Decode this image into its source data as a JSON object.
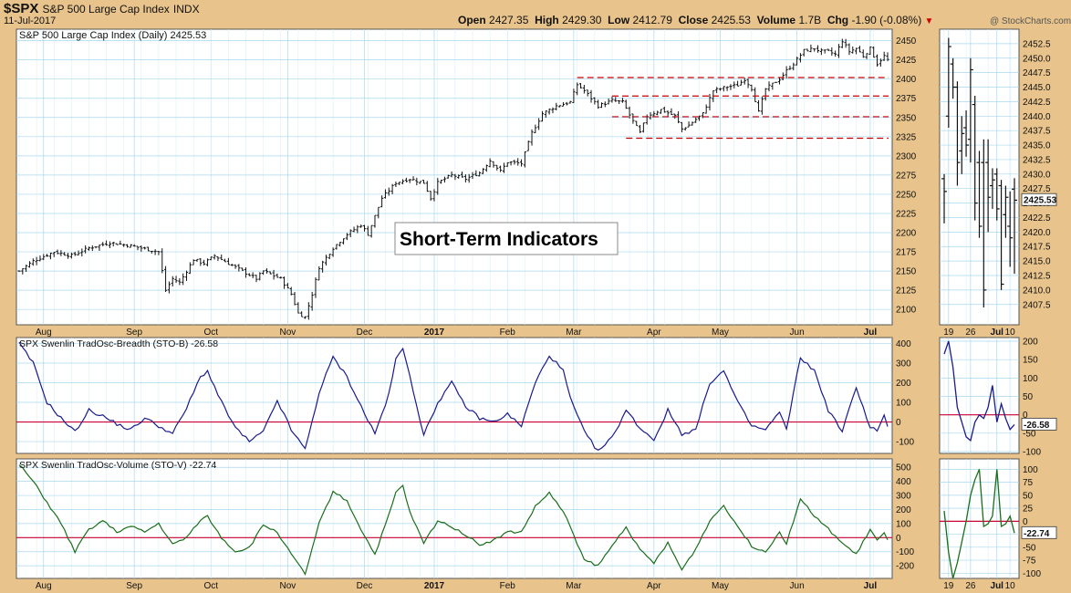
{
  "header": {
    "symbol": "$SPX",
    "name": "S&P 500 Large Cap Index",
    "exchange": "INDX",
    "date": "11-Jul-2017",
    "watermark": "@ StockCharts.com",
    "quote": {
      "open_label": "Open",
      "open": "2427.35",
      "high_label": "High",
      "high": "2429.30",
      "low_label": "Low",
      "low": "2412.79",
      "close_label": "Close",
      "close": "2425.53",
      "volume_label": "Volume",
      "volume": "1.7B",
      "chg_label": "Chg",
      "chg": "-1.90 (-0.08%)"
    },
    "colors": {
      "background": "#e8c48c",
      "grid": "#a8d8ee",
      "price": "#111111",
      "breadth": "#1a1a8c",
      "volume": "#1a6e1a",
      "zero_line": "#cc0033",
      "resistance": "#cc0000",
      "down_arrow": "#cc0000"
    }
  },
  "annotation": "Short-Term Indicators",
  "chart_data": [
    {
      "id": "price",
      "type": "ohlc",
      "title": "S&P 500 Large Cap Index (Daily) 2425.53",
      "last_value": "2425.53",
      "ylim": [
        2080,
        2465
      ],
      "y_ticks": [
        2100,
        2125,
        2150,
        2175,
        2200,
        2225,
        2250,
        2275,
        2300,
        2325,
        2350,
        2375,
        2400,
        2425,
        2450
      ],
      "x_ticks": [
        {
          "label": "Aug",
          "i": 7
        },
        {
          "label": "Sep",
          "i": 33
        },
        {
          "label": "Oct",
          "i": 55
        },
        {
          "label": "Nov",
          "i": 77
        },
        {
          "label": "Dec",
          "i": 99
        },
        {
          "label": "2017",
          "i": 119
        },
        {
          "label": "Feb",
          "i": 140
        },
        {
          "label": "Mar",
          "i": 159
        },
        {
          "label": "Apr",
          "i": 182
        },
        {
          "label": "May",
          "i": 201
        },
        {
          "label": "Jun",
          "i": 223
        },
        {
          "label": "Jul",
          "i": 244
        }
      ],
      "n_bars": 250,
      "close_anchors": [
        [
          0,
          2150
        ],
        [
          4,
          2163
        ],
        [
          10,
          2175
        ],
        [
          15,
          2170
        ],
        [
          20,
          2180
        ],
        [
          26,
          2187
        ],
        [
          32,
          2183
        ],
        [
          35,
          2180
        ],
        [
          40,
          2175
        ],
        [
          42,
          2125
        ],
        [
          44,
          2140
        ],
        [
          46,
          2135
        ],
        [
          50,
          2165
        ],
        [
          53,
          2160
        ],
        [
          56,
          2170
        ],
        [
          60,
          2160
        ],
        [
          64,
          2150
        ],
        [
          68,
          2140
        ],
        [
          70,
          2150
        ],
        [
          75,
          2140
        ],
        [
          78,
          2120
        ],
        [
          80,
          2095
        ],
        [
          82,
          2090
        ],
        [
          84,
          2120
        ],
        [
          86,
          2155
        ],
        [
          90,
          2180
        ],
        [
          94,
          2198
        ],
        [
          98,
          2210
        ],
        [
          100,
          2198
        ],
        [
          104,
          2245
        ],
        [
          108,
          2265
        ],
        [
          112,
          2270
        ],
        [
          116,
          2265
        ],
        [
          118,
          2245
        ],
        [
          120,
          2265
        ],
        [
          124,
          2275
        ],
        [
          128,
          2270
        ],
        [
          132,
          2278
        ],
        [
          135,
          2294
        ],
        [
          138,
          2280
        ],
        [
          140,
          2292
        ],
        [
          144,
          2290
        ],
        [
          147,
          2330
        ],
        [
          150,
          2355
        ],
        [
          154,
          2365
        ],
        [
          158,
          2370
        ],
        [
          160,
          2393
        ],
        [
          162,
          2385
        ],
        [
          166,
          2365
        ],
        [
          170,
          2372
        ],
        [
          173,
          2370
        ],
        [
          176,
          2345
        ],
        [
          178,
          2330
        ],
        [
          180,
          2352
        ],
        [
          184,
          2360
        ],
        [
          188,
          2352
        ],
        [
          190,
          2335
        ],
        [
          192,
          2340
        ],
        [
          196,
          2355
        ],
        [
          199,
          2385
        ],
        [
          203,
          2390
        ],
        [
          206,
          2392
        ],
        [
          208,
          2400
        ],
        [
          210,
          2388
        ],
        [
          212,
          2357
        ],
        [
          214,
          2387
        ],
        [
          218,
          2400
        ],
        [
          220,
          2411
        ],
        [
          222,
          2420
        ],
        [
          225,
          2437
        ],
        [
          228,
          2440
        ],
        [
          230,
          2436
        ],
        [
          232,
          2436
        ],
        [
          234,
          2432
        ],
        [
          236,
          2450
        ],
        [
          238,
          2436
        ],
        [
          240,
          2440
        ],
        [
          242,
          2430
        ],
        [
          244,
          2440
        ],
        [
          246,
          2420
        ],
        [
          248,
          2430
        ],
        [
          249,
          2425
        ]
      ],
      "resistance_levels": [
        2402,
        2378,
        2351,
        2323
      ],
      "resistance_start_i": 160
    },
    {
      "id": "price_zoom",
      "type": "ohlc",
      "ylim": [
        2404,
        2455
      ],
      "y_ticks": [
        2407.5,
        2410.0,
        2412.5,
        2415.0,
        2417.5,
        2420.0,
        2422.5,
        2425.0,
        2427.5,
        2430.0,
        2432.5,
        2435.0,
        2437.5,
        2440.0,
        2442.5,
        2445.0,
        2447.5,
        2450.0,
        2452.5
      ],
      "last_value": "2425.53",
      "x_ticks": [
        {
          "label": "19",
          "i": 1
        },
        {
          "label": "26",
          "i": 6
        },
        {
          "label": "Jul",
          "i": 12
        },
        {
          "label": "10",
          "i": 15
        }
      ],
      "bars": [
        [
          2429.2,
          2430,
          2421.5,
          2427
        ],
        [
          2440,
          2453.5,
          2438,
          2452
        ],
        [
          2449,
          2450,
          2443,
          2445
        ],
        [
          2445,
          2446,
          2428,
          2432
        ],
        [
          2434,
          2440,
          2430,
          2437
        ],
        [
          2438,
          2441,
          2433,
          2435
        ],
        [
          2436,
          2450,
          2432,
          2448
        ],
        [
          2442,
          2443.5,
          2422,
          2425
        ],
        [
          2432,
          2434,
          2419,
          2421
        ],
        [
          2432,
          2436,
          2407,
          2410
        ],
        [
          2432,
          2436,
          2420,
          2426
        ],
        [
          2428,
          2431,
          2424,
          2429
        ],
        [
          2430,
          2431,
          2422,
          2424
        ],
        [
          2428,
          2429,
          2410,
          2411
        ],
        [
          2423,
          2428,
          2419,
          2426
        ],
        [
          2421,
          2427,
          2414,
          2419
        ],
        [
          2427.4,
          2429.3,
          2412.8,
          2425.5
        ]
      ]
    },
    {
      "id": "breadth",
      "type": "line",
      "title": "SPX Swenlin TradOsc-Breadth (STO-B) -26.58",
      "last_value": "-26.58",
      "ylim": [
        -160,
        430
      ],
      "y_ticks": [
        -100,
        0,
        100,
        200,
        300,
        400
      ],
      "anchors": [
        [
          0,
          400
        ],
        [
          4,
          300
        ],
        [
          8,
          100
        ],
        [
          12,
          20
        ],
        [
          16,
          -50
        ],
        [
          20,
          60
        ],
        [
          24,
          30
        ],
        [
          28,
          -10
        ],
        [
          32,
          -40
        ],
        [
          36,
          20
        ],
        [
          40,
          -20
        ],
        [
          44,
          -60
        ],
        [
          48,
          70
        ],
        [
          52,
          230
        ],
        [
          54,
          260
        ],
        [
          58,
          100
        ],
        [
          62,
          -30
        ],
        [
          66,
          -100
        ],
        [
          70,
          -50
        ],
        [
          74,
          110
        ],
        [
          78,
          -40
        ],
        [
          82,
          -140
        ],
        [
          86,
          150
        ],
        [
          90,
          330
        ],
        [
          94,
          230
        ],
        [
          98,
          80
        ],
        [
          102,
          -60
        ],
        [
          106,
          140
        ],
        [
          108,
          320
        ],
        [
          110,
          370
        ],
        [
          112,
          240
        ],
        [
          116,
          -70
        ],
        [
          120,
          100
        ],
        [
          124,
          200
        ],
        [
          128,
          80
        ],
        [
          132,
          20
        ],
        [
          136,
          0
        ],
        [
          140,
          40
        ],
        [
          144,
          -20
        ],
        [
          148,
          200
        ],
        [
          152,
          340
        ],
        [
          156,
          260
        ],
        [
          158,
          120
        ],
        [
          162,
          -50
        ],
        [
          166,
          -150
        ],
        [
          170,
          -80
        ],
        [
          174,
          60
        ],
        [
          178,
          -30
        ],
        [
          182,
          -90
        ],
        [
          186,
          60
        ],
        [
          190,
          -60
        ],
        [
          194,
          -40
        ],
        [
          198,
          200
        ],
        [
          202,
          260
        ],
        [
          206,
          100
        ],
        [
          210,
          -20
        ],
        [
          214,
          -40
        ],
        [
          218,
          50
        ],
        [
          220,
          -40
        ],
        [
          224,
          330
        ],
        [
          228,
          260
        ],
        [
          232,
          60
        ],
        [
          236,
          -50
        ],
        [
          240,
          180
        ],
        [
          244,
          -30
        ],
        [
          246,
          -40
        ],
        [
          248,
          30
        ],
        [
          249,
          -26.58
        ]
      ]
    },
    {
      "id": "breadth_zoom",
      "type": "line",
      "ylim": [
        -105,
        210
      ],
      "y_ticks": [
        -100,
        -50,
        0,
        50,
        100,
        150,
        200
      ],
      "last_value": "-26.58",
      "values": [
        165,
        200,
        130,
        20,
        -20,
        -60,
        -70,
        -20,
        0,
        -10,
        20,
        80,
        -20,
        30,
        -10,
        -40,
        -26.58
      ]
    },
    {
      "id": "volume",
      "type": "line",
      "title": "SPX Swenlin TradOsc-Volume (STO-V) -22.74",
      "last_value": "-22.74",
      "ylim": [
        -290,
        560
      ],
      "y_ticks": [
        -200,
        -100,
        0,
        100,
        200,
        300,
        400,
        500
      ],
      "anchors": [
        [
          0,
          520
        ],
        [
          4,
          400
        ],
        [
          8,
          250
        ],
        [
          12,
          100
        ],
        [
          16,
          -100
        ],
        [
          20,
          60
        ],
        [
          24,
          120
        ],
        [
          28,
          40
        ],
        [
          32,
          80
        ],
        [
          36,
          40
        ],
        [
          40,
          100
        ],
        [
          44,
          -50
        ],
        [
          48,
          0
        ],
        [
          52,
          130
        ],
        [
          54,
          150
        ],
        [
          58,
          0
        ],
        [
          62,
          -100
        ],
        [
          66,
          -70
        ],
        [
          70,
          90
        ],
        [
          74,
          40
        ],
        [
          78,
          -120
        ],
        [
          82,
          -260
        ],
        [
          86,
          100
        ],
        [
          90,
          330
        ],
        [
          94,
          260
        ],
        [
          98,
          60
        ],
        [
          102,
          -120
        ],
        [
          106,
          160
        ],
        [
          108,
          320
        ],
        [
          110,
          370
        ],
        [
          112,
          180
        ],
        [
          116,
          -40
        ],
        [
          120,
          120
        ],
        [
          124,
          80
        ],
        [
          128,
          20
        ],
        [
          132,
          -50
        ],
        [
          136,
          -20
        ],
        [
          140,
          40
        ],
        [
          144,
          40
        ],
        [
          148,
          220
        ],
        [
          152,
          320
        ],
        [
          156,
          180
        ],
        [
          158,
          80
        ],
        [
          162,
          -160
        ],
        [
          166,
          -200
        ],
        [
          170,
          -60
        ],
        [
          174,
          80
        ],
        [
          178,
          -90
        ],
        [
          182,
          -180
        ],
        [
          186,
          -40
        ],
        [
          190,
          -230
        ],
        [
          194,
          -80
        ],
        [
          198,
          120
        ],
        [
          202,
          230
        ],
        [
          206,
          80
        ],
        [
          210,
          -60
        ],
        [
          214,
          -100
        ],
        [
          218,
          40
        ],
        [
          220,
          -40
        ],
        [
          224,
          280
        ],
        [
          228,
          150
        ],
        [
          232,
          60
        ],
        [
          236,
          -40
        ],
        [
          240,
          -120
        ],
        [
          244,
          60
        ],
        [
          246,
          -20
        ],
        [
          248,
          30
        ],
        [
          249,
          -22.74
        ]
      ]
    },
    {
      "id": "volume_zoom",
      "type": "line",
      "ylim": [
        -110,
        120
      ],
      "y_ticks": [
        -100,
        -75,
        -50,
        -25,
        0,
        25,
        50,
        75,
        100
      ],
      "last_value": "-22.74",
      "values": [
        20,
        -60,
        -110,
        -80,
        -40,
        0,
        50,
        80,
        100,
        -10,
        -5,
        10,
        100,
        -10,
        -5,
        10,
        -22.74
      ]
    }
  ]
}
